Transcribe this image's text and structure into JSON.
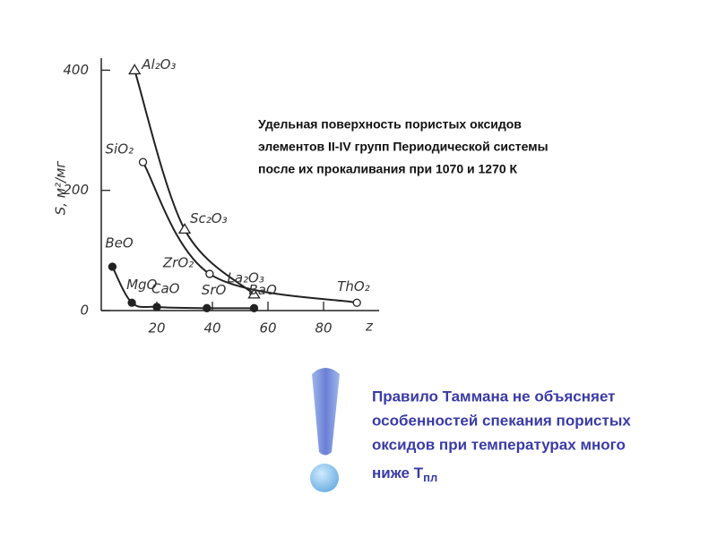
{
  "chart_data": {
    "type": "line",
    "xlabel": "z",
    "ylabel": "S, м²/мг",
    "xlim": [
      0,
      100
    ],
    "ylim": [
      0,
      420
    ],
    "xticks": [
      20,
      40,
      60,
      80
    ],
    "yticks": [
      0,
      200,
      400
    ],
    "color": "#222",
    "series": [
      {
        "marker": "triangle",
        "x": [
          12,
          30,
          55
        ],
        "values": [
          400,
          135,
          27
        ],
        "labels": [
          "Al₂O₃",
          "Sc₂O₃",
          "La₂O₃"
        ]
      },
      {
        "marker": "circle",
        "x": [
          15,
          39,
          92
        ],
        "values": [
          247,
          61,
          13
        ],
        "labels": [
          "SiO₂",
          "ZrO₂",
          "ThO₂"
        ]
      },
      {
        "marker": "dot",
        "x": [
          4,
          11,
          20,
          38,
          55
        ],
        "values": [
          73,
          13,
          6,
          4,
          4
        ],
        "labels": [
          "BeO",
          "MgO",
          "CaO",
          "SrO",
          "BaO"
        ]
      }
    ]
  },
  "caption": [
    "Удельная  поверхность  пористых  оксидов",
    "элементов II-IV групп Периодической системы",
    "после  их  прокаливания  при  1070  и  1270 К"
  ],
  "note": {
    "lines": [
      "Правило  Таммана  не  объясняет",
      "особенностей спекания пористых",
      "оксидов при температурах  много",
      "ниже Т"
    ],
    "subscript": "пл"
  }
}
